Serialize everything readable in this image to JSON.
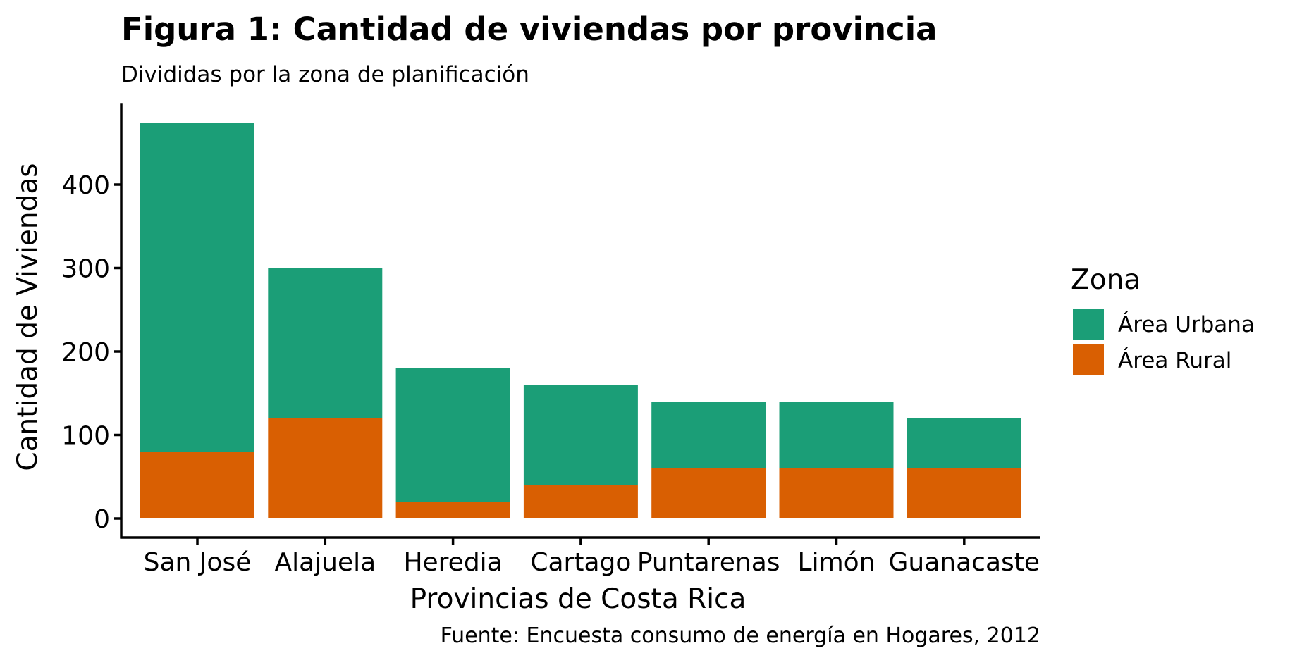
{
  "colors": {
    "urban": "#1b9e77",
    "rural": "#d95f02",
    "axis": "#000000"
  },
  "chart_data": {
    "type": "bar",
    "stacked": true,
    "title": "Figura 1: Cantidad de viviendas por provincia",
    "subtitle": "Divididas por la zona de planificación",
    "xlabel": "Provincias de Costa Rica",
    "ylabel": "Cantidad de Viviendas",
    "caption": "Fuente: Encuesta consumo de energía en Hogares, 2012",
    "categories": [
      "San José",
      "Alajuela",
      "Heredia",
      "Cartago",
      "Puntarenas",
      "Limón",
      "Guanacaste"
    ],
    "series": [
      {
        "name": "Área Urbana",
        "color": "#1b9e77",
        "values": [
          394,
          180,
          160,
          120,
          80,
          80,
          60
        ]
      },
      {
        "name": "Área Rural",
        "color": "#d95f02",
        "values": [
          80,
          120,
          20,
          40,
          60,
          60,
          60
        ]
      }
    ],
    "yticks": [
      0,
      100,
      200,
      300,
      400
    ],
    "ylim": [
      0,
      474
    ],
    "legend": {
      "title": "Zona",
      "position": "right"
    },
    "grid": false
  }
}
